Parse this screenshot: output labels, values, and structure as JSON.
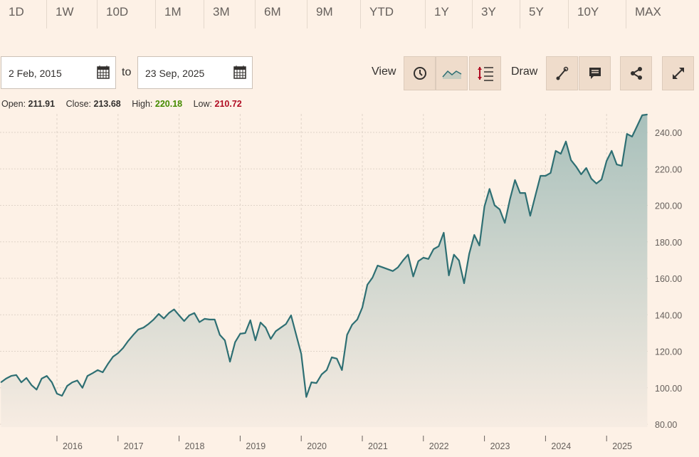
{
  "range_tabs": [
    "1D",
    "1W",
    "10D",
    "1M",
    "3M",
    "6M",
    "9M",
    "YTD",
    "1Y",
    "3Y",
    "5Y",
    "10Y",
    "MAX"
  ],
  "date_range": {
    "from": "2 Feb, 2015",
    "to_label": "to",
    "to": "23 Sep, 2025"
  },
  "toolbar": {
    "view_label": "View",
    "draw_label": "Draw",
    "icons": [
      "clock-icon",
      "line-chart-icon",
      "indicator-scale-icon",
      "draw-line-icon",
      "comment-icon",
      "share-icon",
      "expand-icon"
    ]
  },
  "ohlc": {
    "open_label": "Open:",
    "open": "211.91",
    "close_label": "Close:",
    "close": "213.68",
    "high_label": "High:",
    "high": "220.18",
    "low_label": "Low:",
    "low": "210.72"
  },
  "colors": {
    "background": "#fdf1e6",
    "line": "#2e6f73",
    "high": "#458b00",
    "low": "#b00d23"
  },
  "chart_data": {
    "type": "area",
    "frequency": "monthly",
    "start_month": "2015-02",
    "ylim": [
      80,
      250
    ],
    "y_ticks": [
      "80.00",
      "100.00",
      "120.00",
      "140.00",
      "160.00",
      "180.00",
      "200.00",
      "220.00",
      "240.00"
    ],
    "x_ticks": [
      "2016",
      "2017",
      "2018",
      "2019",
      "2020",
      "2021",
      "2022",
      "2023",
      "2024",
      "2025"
    ],
    "y_axis_position": "right",
    "grid": true,
    "values_by_year": {
      "2015": [
        103,
        105,
        106.5,
        107,
        103,
        105.4,
        101.5,
        99,
        105,
        106.5,
        103
      ],
      "2016": [
        96.8,
        95.6,
        101,
        103,
        104,
        100,
        106.5,
        108,
        109.7,
        108.5,
        113,
        117
      ],
      "2017": [
        119,
        121.8,
        125.7,
        129,
        132,
        133,
        135,
        137.4,
        140.5,
        138,
        141,
        143
      ],
      "2018": [
        139.7,
        136.6,
        139.7,
        141,
        136,
        137.8,
        137.4,
        137.4,
        129,
        126,
        114.3,
        125
      ],
      "2019": [
        129.6,
        130,
        137,
        126,
        135.8,
        133,
        126.8,
        131,
        133,
        135,
        139.7,
        129
      ],
      "2020": [
        118.6,
        95,
        103,
        102.6,
        107.3,
        109.7,
        116.7,
        116,
        109.7,
        129,
        134.6,
        137.4
      ],
      "2021": [
        144,
        156.5,
        160.4,
        167,
        166,
        165,
        164,
        166,
        169.8,
        173,
        161,
        169.4
      ],
      "2022": [
        171.3,
        170.6,
        176,
        177.6,
        185,
        161.6,
        173,
        169.8,
        157.3,
        173.3,
        183.8,
        178
      ],
      "2023": [
        199.4,
        209,
        200,
        197.8,
        190.4,
        203.3,
        213.9,
        206.8,
        206.8,
        194.3,
        205.3,
        216.2
      ],
      "2024": [
        216.2,
        217.8,
        229.9,
        228.3,
        235,
        224.8,
        221.3,
        217,
        220.5,
        214.6,
        212,
        214.2
      ],
      "2025": [
        224.4,
        229.9,
        222.4,
        221.7,
        239.2,
        237.7,
        243.5,
        249.4,
        249.8
      ]
    }
  }
}
